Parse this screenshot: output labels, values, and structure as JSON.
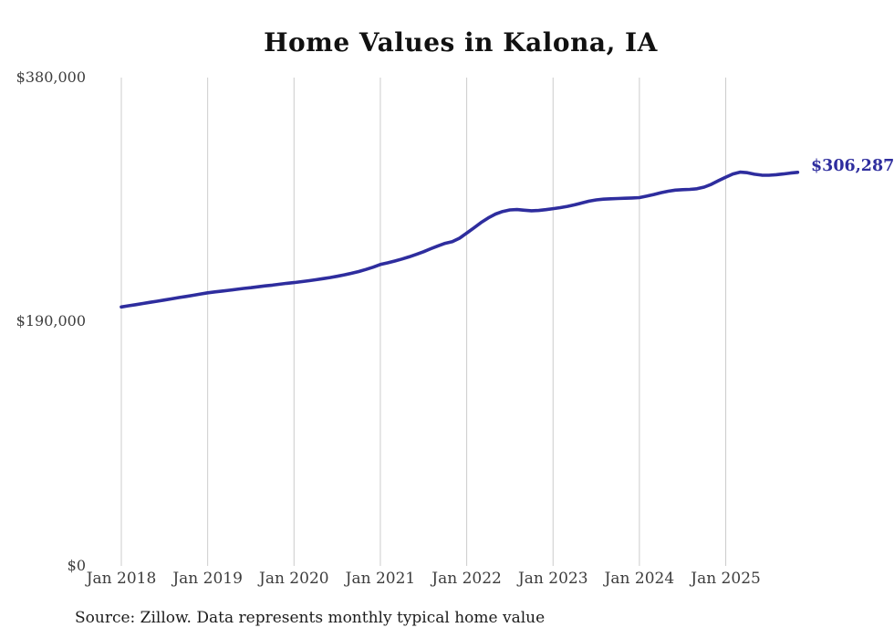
{
  "chart_data": {
    "type": "line",
    "title": "Home Values in Kalona, IA",
    "xlabel": "",
    "ylabel": "",
    "ylim": [
      0,
      380000
    ],
    "y_ticks": [
      0,
      190000,
      380000
    ],
    "y_tick_labels": [
      "$0",
      "$190,000",
      "$380,000"
    ],
    "x_tick_labels": [
      "Jan 2018",
      "Jan 2019",
      "Jan 2020",
      "Jan 2021",
      "Jan 2022",
      "Jan 2023",
      "Jan 2024",
      "Jan 2025"
    ],
    "grid": "vertical-gridlines-only",
    "legend_position": "none",
    "end_label": "$306,287",
    "end_value": 306287,
    "line_color": "#2e2d9e",
    "grid_color": "#cccccc",
    "tick_text_color": "#3d3d3d",
    "title_color": "#111111",
    "source_note": "Source: Zillow. Data represents monthly typical home value",
    "series": [
      {
        "name": "Monthly typical home value",
        "interval": "monthly",
        "start": "Jan 2018",
        "end": "Nov 2025",
        "values": [
          201500,
          202400,
          203300,
          204200,
          205100,
          206000,
          206900,
          207800,
          208800,
          209700,
          210600,
          211600,
          212500,
          213200,
          213900,
          214500,
          215200,
          215900,
          216500,
          217200,
          217900,
          218500,
          219200,
          219900,
          220500,
          221200,
          221900,
          222700,
          223500,
          224400,
          225400,
          226500,
          227700,
          229100,
          230700,
          232500,
          234500,
          235800,
          237200,
          238800,
          240500,
          242400,
          244500,
          246800,
          249000,
          251000,
          252300,
          255000,
          259000,
          263000,
          267200,
          270800,
          273800,
          275800,
          277000,
          277300,
          276800,
          276400,
          276600,
          277200,
          278000,
          278800,
          279800,
          281000,
          282400,
          283800,
          284800,
          285400,
          285700,
          285900,
          286100,
          286300,
          286600,
          287700,
          289000,
          290400,
          291600,
          292400,
          292800,
          293000,
          293500,
          294800,
          297000,
          299800,
          302500,
          305000,
          306400,
          306000,
          304800,
          304100,
          304000,
          304400,
          305000,
          305700,
          306287
        ]
      }
    ]
  }
}
